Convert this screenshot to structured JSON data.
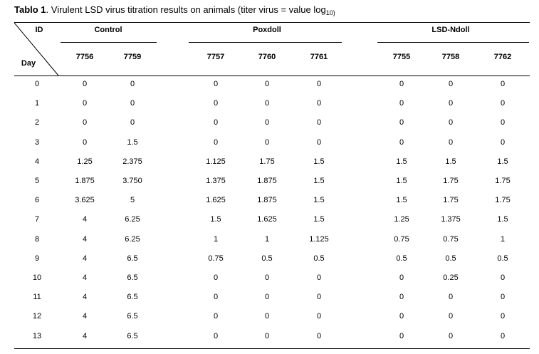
{
  "caption": {
    "label": "Tablo 1",
    "text": ". Virulent LSD virus titration results on animals (titer virus = value log",
    "sub": "10)"
  },
  "header": {
    "id_label": "ID",
    "day_label": "Day",
    "groups": [
      {
        "name": "Control",
        "animals": [
          "7756",
          "7759"
        ]
      },
      {
        "name": "Poxdoll",
        "animals": [
          "7757",
          "7760",
          "7761"
        ]
      },
      {
        "name": "LSD-Ndoll",
        "animals": [
          "7755",
          "7758",
          "7762"
        ]
      }
    ]
  },
  "rows": [
    {
      "day": "0",
      "values": [
        "0",
        "0",
        "0",
        "0",
        "0",
        "0",
        "0",
        "0"
      ]
    },
    {
      "day": "1",
      "values": [
        "0",
        "0",
        "0",
        "0",
        "0",
        "0",
        "0",
        "0"
      ]
    },
    {
      "day": "2",
      "values": [
        "0",
        "0",
        "0",
        "0",
        "0",
        "0",
        "0",
        "0"
      ]
    },
    {
      "day": "3",
      "values": [
        "0",
        "1.5",
        "0",
        "0",
        "0",
        "0",
        "0",
        "0"
      ]
    },
    {
      "day": "4",
      "values": [
        "1.25",
        "2.375",
        "1.125",
        "1.75",
        "1.5",
        "1.5",
        "1.5",
        "1.5"
      ]
    },
    {
      "day": "5",
      "values": [
        "1.875",
        "3.750",
        "1.375",
        "1.875",
        "1.5",
        "1.5",
        "1.75",
        "1.75"
      ]
    },
    {
      "day": "6",
      "values": [
        "3.625",
        "5",
        "1.625",
        "1.875",
        "1.5",
        "1.5",
        "1.75",
        "1.75"
      ]
    },
    {
      "day": "7",
      "values": [
        "4",
        "6.25",
        "1.5",
        "1.625",
        "1.5",
        "1.25",
        "1.375",
        "1.5"
      ]
    },
    {
      "day": "8",
      "values": [
        "4",
        "6.25",
        "1",
        "1",
        "1.125",
        "0.75",
        "0.75",
        "1"
      ]
    },
    {
      "day": "9",
      "values": [
        "4",
        "6.5",
        "0.75",
        "0.5",
        "0.5",
        "0.5",
        "0.5",
        "0.5"
      ]
    },
    {
      "day": "10",
      "values": [
        "4",
        "6.5",
        "0",
        "0",
        "0",
        "0",
        "0.25",
        "0"
      ]
    },
    {
      "day": "11",
      "values": [
        "4",
        "6.5",
        "0",
        "0",
        "0",
        "0",
        "0",
        "0"
      ]
    },
    {
      "day": "12",
      "values": [
        "4",
        "6.5",
        "0",
        "0",
        "0",
        "0",
        "0",
        "0"
      ]
    },
    {
      "day": "13",
      "values": [
        "4",
        "6.5",
        "0",
        "0",
        "0",
        "0",
        "0",
        "0"
      ]
    }
  ]
}
